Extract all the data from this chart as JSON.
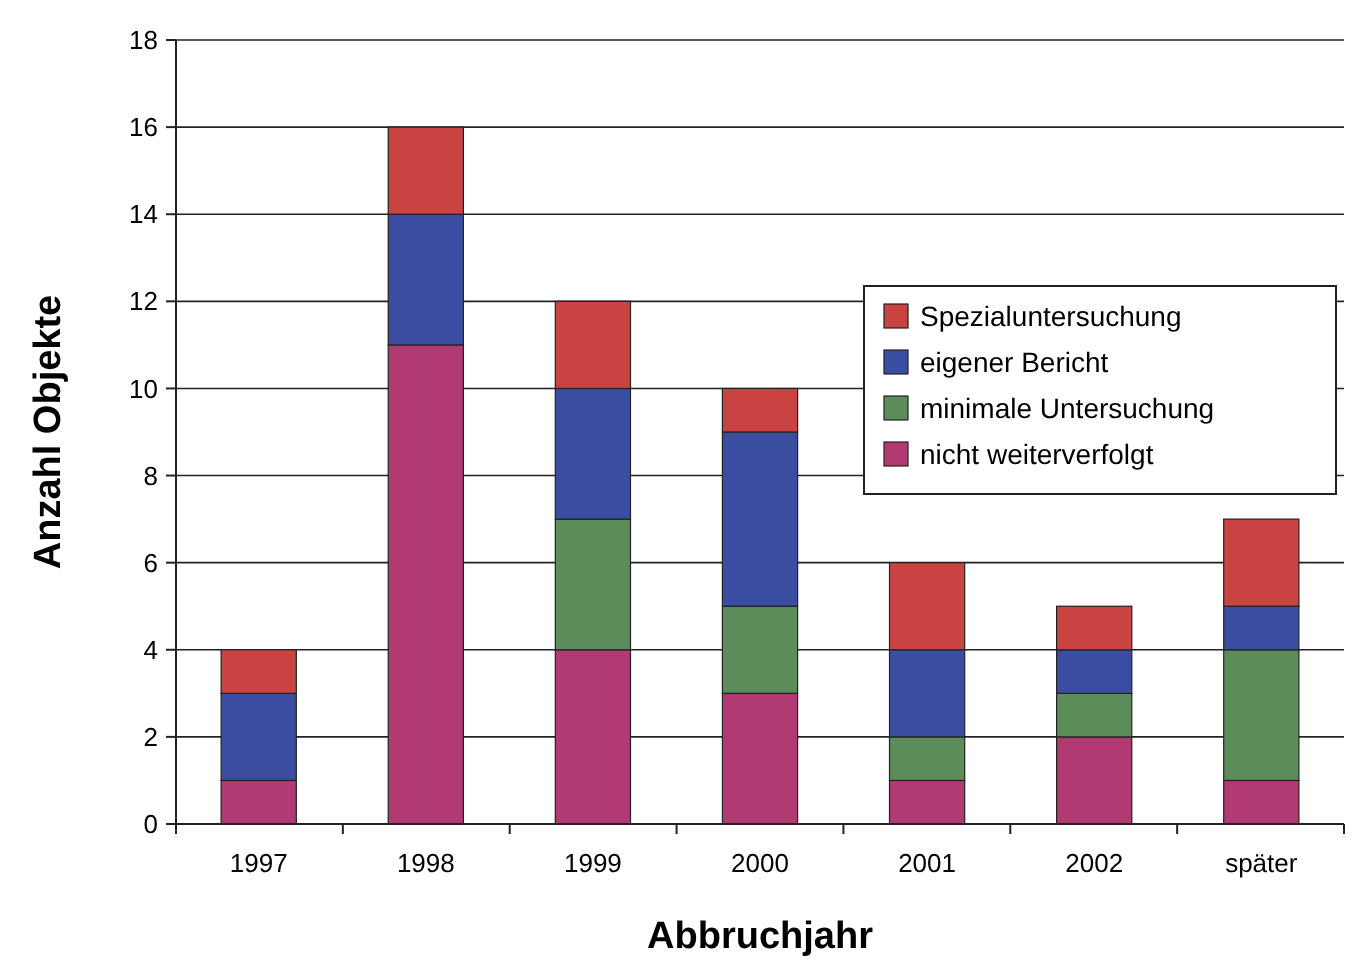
{
  "chart_data": {
    "type": "bar",
    "stacked": true,
    "xlabel": "Abbruchjahr",
    "ylabel": "Anzahl Objekte",
    "categories": [
      "1997",
      "1998",
      "1999",
      "2000",
      "2001",
      "2002",
      "später"
    ],
    "ylim": [
      0,
      18
    ],
    "yticks": [
      0,
      2,
      4,
      6,
      8,
      10,
      12,
      14,
      16,
      18
    ],
    "grid": "y",
    "legend": "right",
    "series": [
      {
        "name": "nicht weiterverfolgt",
        "color": "#b23a72",
        "values": [
          1,
          11,
          4,
          3,
          1,
          2,
          1
        ]
      },
      {
        "name": "minimale Untersuchung",
        "color": "#5b8c5a",
        "values": [
          0,
          0,
          3,
          2,
          1,
          1,
          3
        ]
      },
      {
        "name": "eigener Bericht",
        "color": "#3b4da0",
        "values": [
          2,
          3,
          3,
          4,
          2,
          1,
          1
        ]
      },
      {
        "name": "Spezialuntersuchung",
        "color": "#c94343",
        "values": [
          1,
          2,
          2,
          1,
          2,
          1,
          2
        ]
      }
    ]
  }
}
